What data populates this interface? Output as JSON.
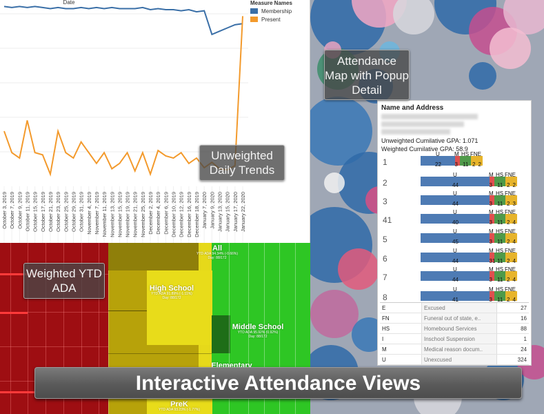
{
  "line_chart": {
    "x_header": "Date",
    "legend_title": "Measure Names",
    "series": [
      {
        "name": "Membership",
        "color": "#3a6fa7"
      },
      {
        "name": "Present",
        "color": "#f39a2c"
      }
    ],
    "dates": [
      "October 3, 2019",
      "October 7, 2019",
      "October 9, 2019",
      "October 11, 2019",
      "October 15, 2019",
      "October 17, 2019",
      "October 21, 2019",
      "October 23, 2019",
      "October 25, 2019",
      "October 29, 2019",
      "October 31, 2019",
      "November 4, 2019",
      "November 7, 2019",
      "November 11, 2019",
      "November 13, 2019",
      "November 15, 2019",
      "November 19, 2019",
      "November 21, 2019",
      "November 25, 2019",
      "December 2, 2019",
      "December 4, 2019",
      "December 6, 2019",
      "December 10, 2019",
      "December 12, 2019",
      "December 16, 2019",
      "December 18, 2019",
      "January 7, 2020",
      "January 9, 2020",
      "January 13, 2020",
      "January 15, 2020",
      "January 17, 2020",
      "January 22, 2020"
    ]
  },
  "callouts": {
    "daily": "Unweighted Daily Trends",
    "map": "Attendance Map with Popup Detail",
    "ytd": "Weighted YTD ADA",
    "banner": "Interactive Attendance Views"
  },
  "treemap": {
    "all": {
      "name": "All",
      "ada": "YTD ADA 94.34% (-0.66%)",
      "day": "Day: 88/172"
    },
    "high": {
      "name": "High School",
      "ada": "YTD ADA 91.89% (-1.11%)",
      "day": "Day: 88/172"
    },
    "middle": {
      "name": "Middle School",
      "ada": "YTD ADA 95.92% (0.92%)",
      "day": "Day: 88/172"
    },
    "elementary": {
      "name": "Elementary"
    },
    "prek": {
      "name": "PreK",
      "ada": "YTD ADA 93.23% (-1.77%)"
    }
  },
  "tooltip": {
    "header": "Name and Address",
    "gpa_unweighted": "Unweighted Cumilative GPA: 1.071",
    "gpa_weighted": "Weighted Cumilative GPA: 58.9",
    "rows": [
      {
        "label": "1",
        "u": "22",
        "m": "3",
        "hs": "11",
        "fn": "2",
        "e": "2"
      },
      {
        "label": "2",
        "u": "44",
        "m": "3",
        "hs": "11",
        "fn": "2",
        "e": "2"
      },
      {
        "label": "3",
        "u": "44",
        "m": "3",
        "hs": "11",
        "fn": "2",
        "e": "3"
      },
      {
        "label": "41",
        "u": "40",
        "m": "3",
        "hs": "11",
        "fn": "2",
        "e": "4"
      },
      {
        "label": "5",
        "u": "45",
        "m": "3",
        "hs": "11",
        "fn": "2",
        "e": "4"
      },
      {
        "label": "6",
        "u": "44",
        "m": "31",
        "hs": "11",
        "fn": "2",
        "e": "4"
      },
      {
        "label": "7",
        "u": "44",
        "m": "3",
        "hs": "11",
        "fn": "2",
        "e": "4"
      },
      {
        "label": "8",
        "u": "41",
        "m": "3",
        "hs": "11",
        "fn": "2",
        "e": "4"
      }
    ],
    "codes": [
      {
        "code": "E",
        "desc": "Excused",
        "count": "27"
      },
      {
        "code": "FN",
        "desc": "Funeral out of state, e..",
        "count": "16"
      },
      {
        "code": "HS",
        "desc": "Homebound Services",
        "count": "88"
      },
      {
        "code": "I",
        "desc": "Inschool Suspension",
        "count": "1"
      },
      {
        "code": "M",
        "desc": "Medical reason docum..",
        "count": "24"
      },
      {
        "code": "U",
        "desc": "Unexcused",
        "count": "324"
      }
    ]
  },
  "chart_data": {
    "type": "line",
    "title": "",
    "xlabel": "Date",
    "ylabel": "",
    "categories": [
      "October 3, 2019",
      "October 7, 2019",
      "October 9, 2019",
      "October 11, 2019",
      "October 15, 2019",
      "October 17, 2019",
      "October 21, 2019",
      "October 23, 2019",
      "October 25, 2019",
      "October 29, 2019",
      "October 31, 2019",
      "November 4, 2019",
      "November 7, 2019",
      "November 11, 2019",
      "November 13, 2019",
      "November 15, 2019",
      "November 19, 2019",
      "November 21, 2019",
      "November 25, 2019",
      "December 2, 2019",
      "December 4, 2019",
      "December 6, 2019",
      "December 10, 2019",
      "December 12, 2019",
      "December 16, 2019",
      "December 18, 2019",
      "January 7, 2020",
      "January 9, 2020",
      "January 13, 2020",
      "January 15, 2020",
      "January 17, 2020",
      "January 22, 2020"
    ],
    "series": [
      {
        "name": "Membership",
        "values": [
          99.6,
          99.5,
          99.6,
          99.5,
          99.6,
          99.5,
          99.4,
          99.5,
          99.4,
          99.4,
          99.5,
          99.4,
          99.5,
          99.4,
          99.5,
          99.4,
          99.4,
          99.4,
          99.5,
          99.3,
          99.4,
          99.3,
          99.3,
          99.2,
          99.3,
          99.1,
          99.2,
          97.0,
          97.3,
          97.6,
          97.9,
          98.0
        ]
      },
      {
        "name": "Present",
        "values": [
          88,
          86,
          85.5,
          89,
          86,
          85.8,
          84,
          88,
          86,
          85.5,
          87,
          86,
          85,
          86,
          84.5,
          85,
          86,
          84.3,
          86,
          84,
          86.2,
          85.7,
          85.5,
          86,
          85,
          85.5,
          84.6,
          85.1,
          84.5,
          84.4,
          84.8,
          98.7
        ]
      }
    ]
  },
  "colors": {
    "membership": "#3a6fa7",
    "present": "#f39a2c",
    "high_school": "#d8c70a",
    "middle_school": "#2ec624",
    "all": "#e8dc1a",
    "low_ada": "#9e0e12",
    "tip_u": "#4e7bb4",
    "tip_m": "#e0504f",
    "tip_hs": "#4f9a4a",
    "tip_fn": "#e7b42b"
  }
}
